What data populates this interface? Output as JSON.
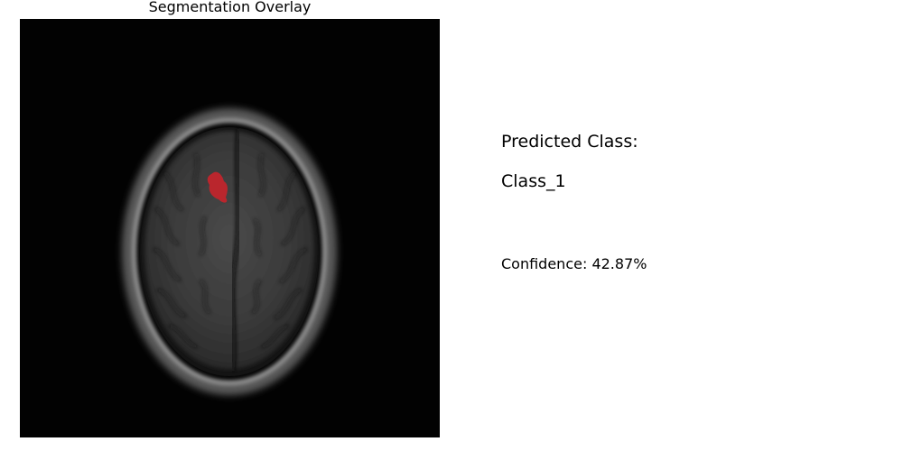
{
  "overlay": {
    "title": "Segmentation Overlay",
    "image_semantic": "brain-mri-axial-slice",
    "mask_color": "#c8242b"
  },
  "prediction": {
    "heading": "Predicted Class:",
    "class_name": "Class_1",
    "confidence_label": "Confidence: 42.87%",
    "confidence_value": 42.87
  }
}
